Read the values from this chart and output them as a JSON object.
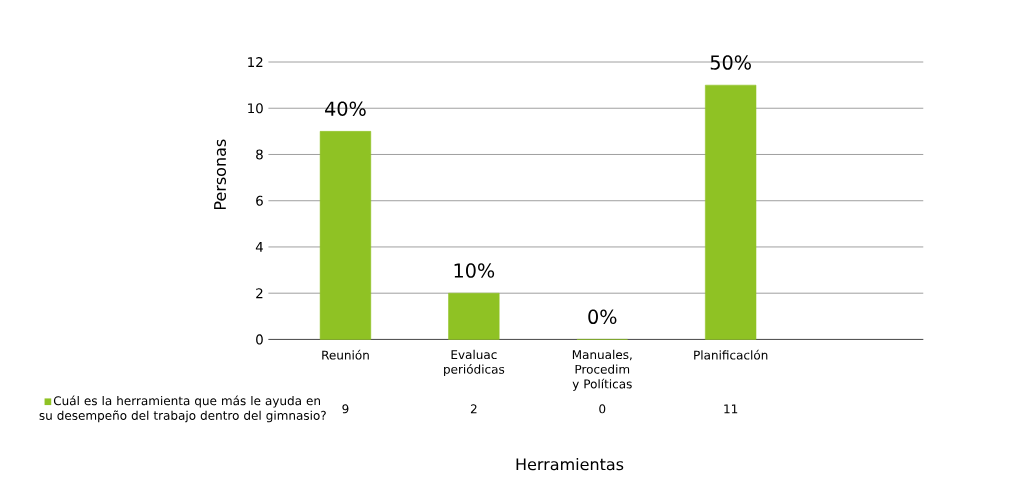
{
  "chart_data": {
    "type": "bar",
    "xlabel": "Herramientas",
    "ylabel": "Personas",
    "categories": [
      "Reunión",
      "Evaluac periódicas",
      "Manuales, Procedim y Políticas",
      "Planificaclón"
    ],
    "series": [
      {
        "name": "Cuál es la herramienta que más le ayuda en su desempeño del trabajo dentro del gimnasio?",
        "color": "#8fc224",
        "values": [
          9,
          2,
          0,
          11
        ]
      }
    ],
    "ylim": [
      0,
      12
    ],
    "yticks": [
      0,
      2,
      4,
      6,
      8,
      10,
      12
    ],
    "grid": "y",
    "legend": "bottom left",
    "data_labels": true,
    "annotations": [
      {
        "text": "40%",
        "x": "Reunión",
        "y": 9
      },
      {
        "text": "10%",
        "x": "Evaluac periódicas",
        "y": 2
      },
      {
        "text": "0%",
        "x": "Manuales, Procedim y Políticas",
        "y": 0
      },
      {
        "text": "50%",
        "x": "Planificaclón",
        "y": 11
      }
    ]
  }
}
